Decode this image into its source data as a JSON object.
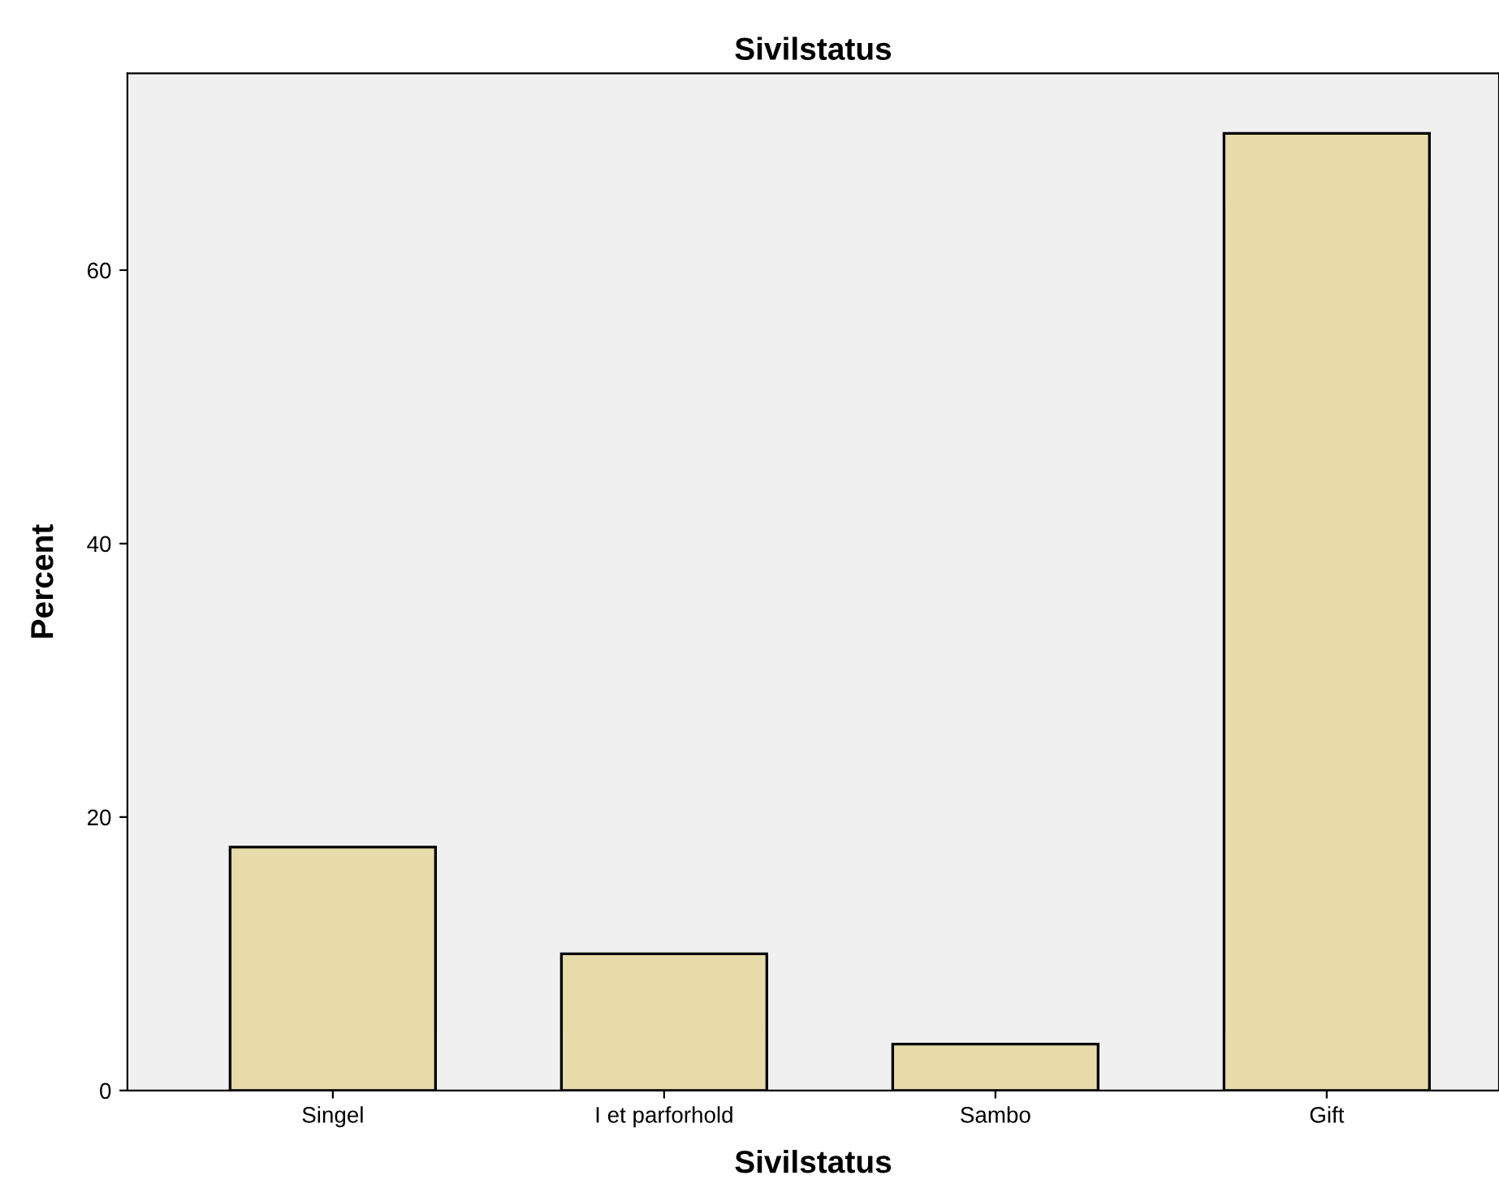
{
  "chart_data": {
    "type": "bar",
    "title": "Sivilstatus",
    "xlabel": "Sivilstatus",
    "ylabel": "Percent",
    "categories": [
      "Singel",
      "I et parforhold",
      "Sambo",
      "Gift"
    ],
    "values": [
      17.8,
      10.0,
      3.4,
      70.0
    ],
    "color": "#e6dba9",
    "ylim": [
      0,
      74.4
    ],
    "yticks": [
      0,
      20,
      40,
      60
    ],
    "grid": false,
    "legend": false
  }
}
